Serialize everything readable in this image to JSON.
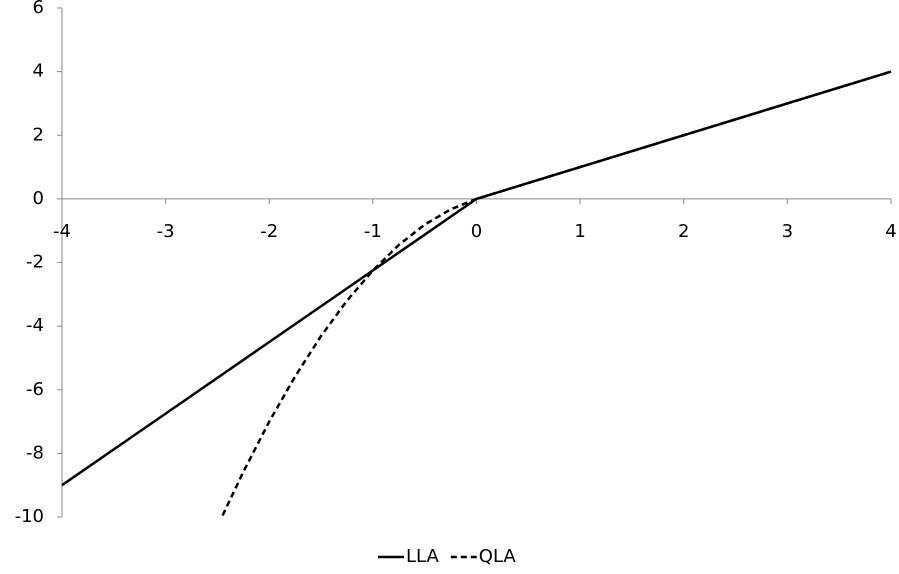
{
  "chart_data": {
    "type": "line",
    "x": [
      -4,
      -3.5,
      -3,
      -2.5,
      -2.45,
      -2.25,
      -2,
      -1.75,
      -1.5,
      -1.25,
      -1,
      -0.75,
      -0.5,
      -0.25,
      0,
      4
    ],
    "series": [
      {
        "name": "LLA",
        "color": "#000000",
        "dash": false,
        "values": [
          -9,
          -7.875,
          -6.75,
          -5.625,
          -5.5125,
          -5.0625,
          -4.5,
          -3.9375,
          -3.375,
          -2.8125,
          -2.25,
          -1.6875,
          -1.125,
          -0.5625,
          0,
          4
        ]
      },
      {
        "name": "QLA",
        "color": "#000000",
        "dash": true,
        "values": [
          null,
          null,
          null,
          null,
          -9.95,
          -8.58,
          -7,
          -5.58,
          -4.31,
          -3.2,
          -2.25,
          -1.45,
          -0.81,
          -0.33,
          0,
          4
        ]
      }
    ],
    "xlim": [
      -4,
      4
    ],
    "ylim": [
      -10,
      6
    ],
    "xticks": [
      -4,
      -3,
      -2,
      -1,
      0,
      1,
      2,
      3,
      4
    ],
    "yticks": [
      -10,
      -8,
      -6,
      -4,
      -2,
      0,
      2,
      4,
      6
    ],
    "legend": "bottom"
  }
}
